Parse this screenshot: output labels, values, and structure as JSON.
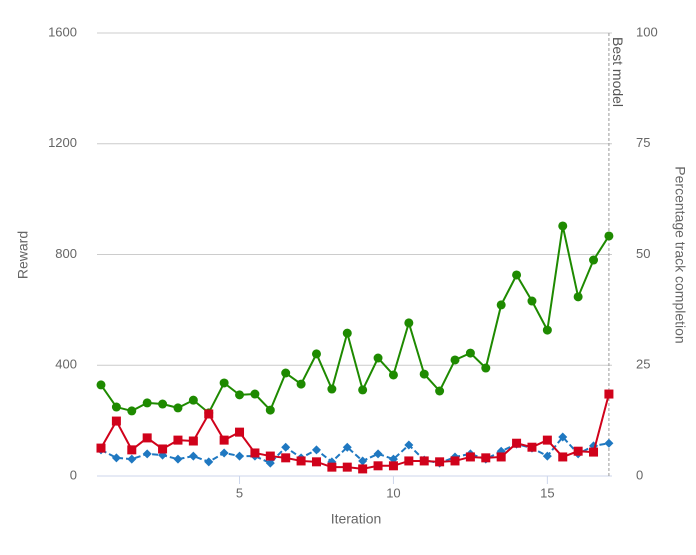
{
  "chart_data": {
    "type": "line",
    "x_label": "Iteration",
    "y_label": "Reward",
    "y2_label": "Percentage track completion",
    "x": [
      0.5,
      1,
      1.5,
      2,
      2.5,
      3,
      3.5,
      4,
      4.5,
      5,
      5.5,
      6,
      6.5,
      7,
      7.5,
      8,
      8.5,
      9,
      9.5,
      10,
      10.5,
      11,
      11.5,
      12,
      12.5,
      13,
      13.5,
      14,
      14.5,
      15,
      15.5,
      16,
      16.5,
      17
    ],
    "xlim": [
      0.37,
      17.1
    ],
    "xticks": [
      5,
      10,
      15
    ],
    "ylim": [
      0,
      1600
    ],
    "yticks": [
      0,
      400,
      800,
      1200,
      1600
    ],
    "y2lim": [
      0,
      100
    ],
    "y2ticks": [
      0,
      25,
      50,
      75,
      100
    ],
    "grid": true,
    "annotation": {
      "text": "Best model",
      "x": 17
    },
    "series": [
      {
        "color": "#1e8a00",
        "marker": "circle",
        "dashed": false,
        "values": [
          329,
          249,
          235,
          264,
          260,
          246,
          274,
          228,
          336,
          293,
          296,
          238,
          372,
          332,
          441,
          314,
          516,
          311,
          426,
          365,
          553,
          368,
          307,
          419,
          444,
          390,
          618,
          726,
          632,
          527,
          903,
          647,
          780,
          867
        ]
      },
      {
        "color": "#1f78c1",
        "marker": "diamond",
        "dashed": true,
        "axis": "y2",
        "values": [
          5.9,
          4.1,
          3.8,
          5.0,
          4.7,
          3.8,
          4.5,
          3.2,
          5.2,
          4.5,
          4.5,
          2.9,
          6.5,
          4.1,
          5.9,
          3.2,
          6.5,
          3.4,
          5.0,
          3.8,
          7.0,
          3.6,
          2.9,
          4.3,
          5.0,
          3.8,
          5.6,
          7.2,
          6.3,
          4.5,
          8.8,
          5.0,
          6.8,
          7.4
        ]
      },
      {
        "color": "#d0021b",
        "marker": "square",
        "dashed": false,
        "axis": "y2",
        "values": [
          6.3,
          12.4,
          5.9,
          8.6,
          6.1,
          8.1,
          7.9,
          14.0,
          8.1,
          9.9,
          5.2,
          4.5,
          4.1,
          3.4,
          3.2,
          2.0,
          2.0,
          1.6,
          2.3,
          2.3,
          3.4,
          3.4,
          3.2,
          3.4,
          4.3,
          4.1,
          4.3,
          7.4,
          6.5,
          8.1,
          4.3,
          5.6,
          5.4,
          18.5
        ]
      }
    ]
  }
}
